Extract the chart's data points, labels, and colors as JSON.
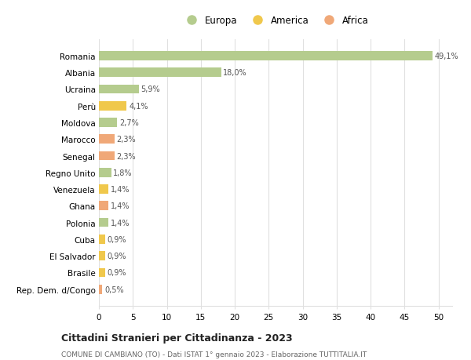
{
  "countries": [
    "Romania",
    "Albania",
    "Ucraina",
    "Perù",
    "Moldova",
    "Marocco",
    "Senegal",
    "Regno Unito",
    "Venezuela",
    "Ghana",
    "Polonia",
    "Cuba",
    "El Salvador",
    "Brasile",
    "Rep. Dem. d/Congo"
  ],
  "values": [
    49.1,
    18.0,
    5.9,
    4.1,
    2.7,
    2.3,
    2.3,
    1.8,
    1.4,
    1.4,
    1.4,
    0.9,
    0.9,
    0.9,
    0.5
  ],
  "labels": [
    "49,1%",
    "18,0%",
    "5,9%",
    "4,1%",
    "2,7%",
    "2,3%",
    "2,3%",
    "1,8%",
    "1,4%",
    "1,4%",
    "1,4%",
    "0,9%",
    "0,9%",
    "0,9%",
    "0,5%"
  ],
  "continents": [
    "Europa",
    "Europa",
    "Europa",
    "America",
    "Europa",
    "Africa",
    "Africa",
    "Europa",
    "America",
    "Africa",
    "Europa",
    "America",
    "America",
    "America",
    "Africa"
  ],
  "colors": {
    "Europa": "#b5cc8e",
    "America": "#f0c84c",
    "Africa": "#f0a878"
  },
  "title": "Cittadini Stranieri per Cittadinanza - 2023",
  "subtitle": "COMUNE DI CAMBIANO (TO) - Dati ISTAT 1° gennaio 2023 - Elaborazione TUTTITALIA.IT",
  "xlim": [
    0,
    52
  ],
  "xticks": [
    0,
    5,
    10,
    15,
    20,
    25,
    30,
    35,
    40,
    45,
    50
  ],
  "background_color": "#ffffff",
  "grid_color": "#e0e0e0",
  "bar_height": 0.55
}
